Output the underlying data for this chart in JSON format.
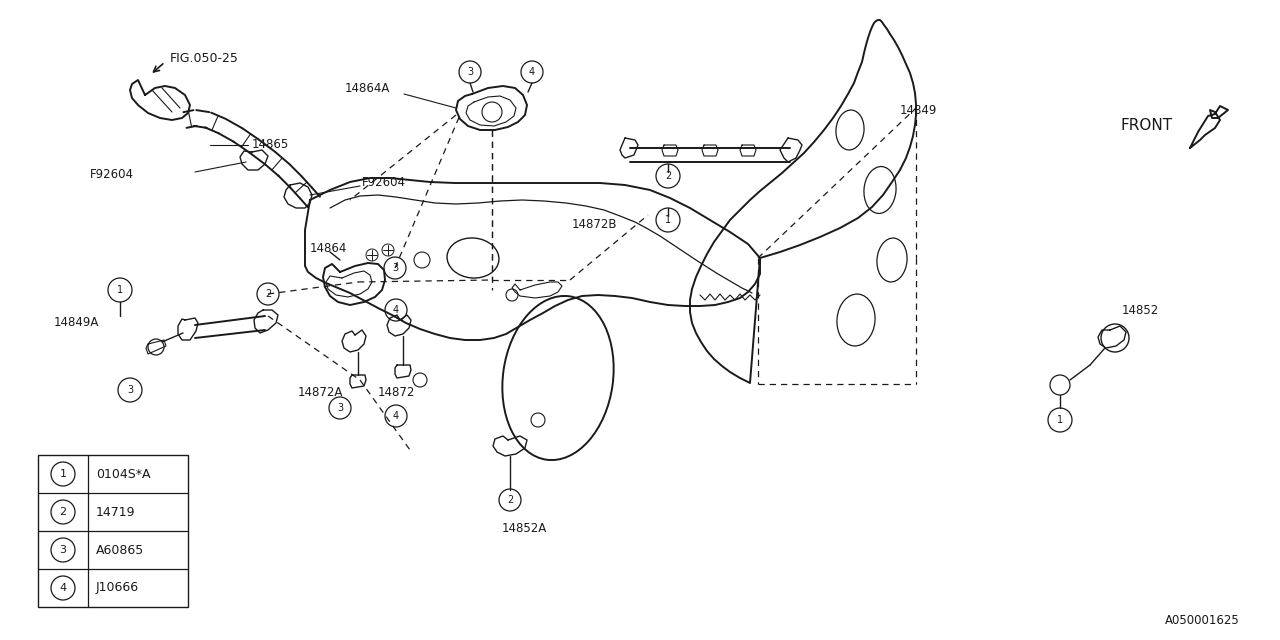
{
  "bg_color": "#ffffff",
  "line_color": "#1a1a1a",
  "fig_ref": "FIG.050-25",
  "part_number_ref": "A050001625",
  "front_label": "FRONT",
  "legend": [
    {
      "num": "1",
      "code": "0104S*A"
    },
    {
      "num": "2",
      "code": "14719"
    },
    {
      "num": "3",
      "code": "A60865"
    },
    {
      "num": "4",
      "code": "J10666"
    }
  ],
  "figsize": [
    12.8,
    6.4
  ],
  "dpi": 100
}
